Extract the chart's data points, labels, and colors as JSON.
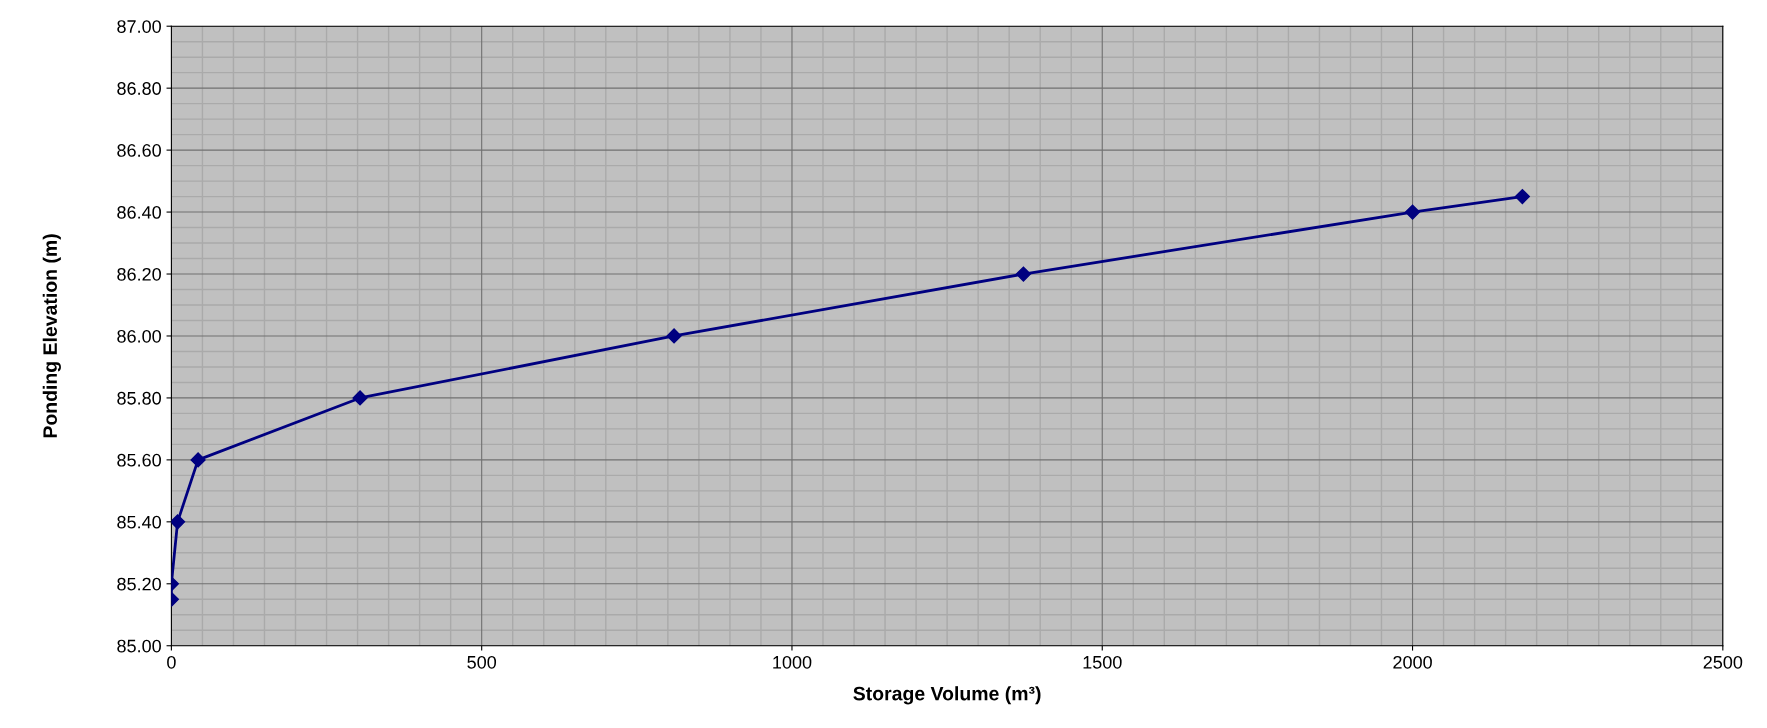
{
  "chart_data": {
    "type": "line",
    "xlabel": "Storage Volume (m³)",
    "ylabel": "Ponding Elevation (m)",
    "x": [
      0,
      0,
      10,
      43,
      304,
      810,
      1373,
      2000,
      2177
    ],
    "series": [
      {
        "color": "#000080",
        "values": [
          85.15,
          85.2,
          85.4,
          85.6,
          85.8,
          86.0,
          86.2,
          86.4,
          86.45
        ]
      }
    ],
    "xlim": [
      0,
      2500
    ],
    "xticks": [
      0,
      500,
      1000,
      1500,
      2000,
      2500
    ],
    "ylim": [
      85.0,
      87.0
    ],
    "yticks": [
      {
        "value": 85.0,
        "label": "85.00"
      },
      {
        "value": 85.2,
        "label": "85.20"
      },
      {
        "value": 85.4,
        "label": "85.40"
      },
      {
        "value": 85.6,
        "label": "85.60"
      },
      {
        "value": 85.8,
        "label": "85.80"
      },
      {
        "value": 86.0,
        "label": "86.00"
      },
      {
        "value": 86.2,
        "label": "86.20"
      },
      {
        "value": 86.4,
        "label": "86.40"
      },
      {
        "value": 86.6,
        "label": "86.60"
      },
      {
        "value": 86.8,
        "label": "86.80"
      },
      {
        "value": 87.0,
        "label": "87.00"
      }
    ],
    "grid": true,
    "legend": false,
    "marker": "diamond",
    "line_style": "solid"
  }
}
